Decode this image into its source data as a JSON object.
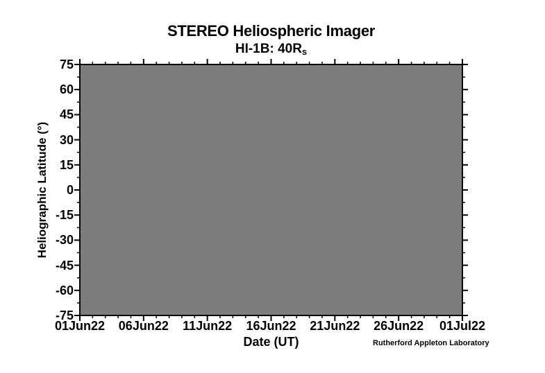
{
  "figure": {
    "title": "STEREO Heliospheric Imager",
    "subtitle_base": "HI-1B: 40R",
    "subtitle_subscript": "s",
    "xlabel": "Date (UT)",
    "ylabel": "Heliographic Latitude (°)",
    "credit": "Rutherford Appleton Laboratory"
  },
  "chart_data": {
    "type": "heatmap",
    "title": "STEREO Heliospheric Imager",
    "subtitle": "HI-1B: 40Rs",
    "xlabel": "Date (UT)",
    "ylabel": "Heliographic Latitude (°)",
    "x_tick_labels": [
      "01Jun22",
      "06Jun22",
      "11Jun22",
      "16Jun22",
      "21Jun22",
      "26Jun22",
      "01Jul22"
    ],
    "x_range_days": 30,
    "x_major_interval_days": 5,
    "x_minor_interval_days": 1,
    "ylim": [
      -75,
      75
    ],
    "y_ticks": [
      75,
      60,
      45,
      30,
      15,
      0,
      -15,
      -30,
      -45,
      -60,
      -75
    ],
    "y_minor_ticks": [
      67.5,
      52.5,
      37.5,
      22.5,
      7.5,
      -7.5,
      -22.5,
      -37.5,
      -52.5,
      -67.5
    ],
    "series": [],
    "plot_note": "plot area uniformly gray, no data points visible",
    "grid": false,
    "legend": "none",
    "colors": {
      "plot_fill": "#7d7d7d",
      "axis": "#000000",
      "background": "#ffffff",
      "text": "#000000"
    }
  }
}
